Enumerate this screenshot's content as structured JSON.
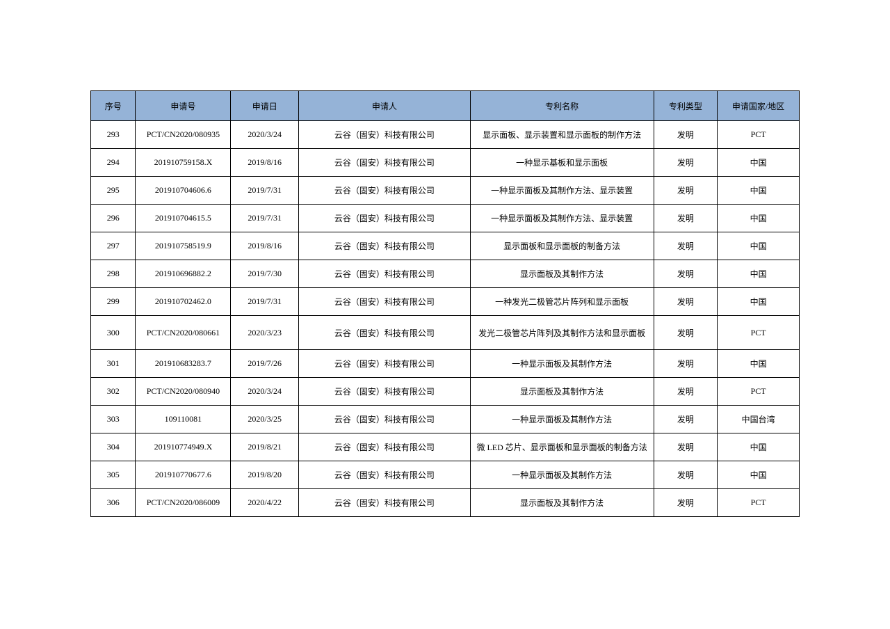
{
  "columns": [
    "序号",
    "申请号",
    "申请日",
    "申请人",
    "专利名称",
    "专利类型",
    "申请国家/地区"
  ],
  "rows": [
    [
      "293",
      "PCT/CN2020/080935",
      "2020/3/24",
      "云谷（固安）科技有限公司",
      "显示面板、显示装置和显示面板的制作方法",
      "发明",
      "PCT"
    ],
    [
      "294",
      "201910759158.X",
      "2019/8/16",
      "云谷（固安）科技有限公司",
      "一种显示基板和显示面板",
      "发明",
      "中国"
    ],
    [
      "295",
      "201910704606.6",
      "2019/7/31",
      "云谷（固安）科技有限公司",
      "一种显示面板及其制作方法、显示装置",
      "发明",
      "中国"
    ],
    [
      "296",
      "201910704615.5",
      "2019/7/31",
      "云谷（固安）科技有限公司",
      "一种显示面板及其制作方法、显示装置",
      "发明",
      "中国"
    ],
    [
      "297",
      "201910758519.9",
      "2019/8/16",
      "云谷（固安）科技有限公司",
      "显示面板和显示面板的制备方法",
      "发明",
      "中国"
    ],
    [
      "298",
      "201910696882.2",
      "2019/7/30",
      "云谷（固安）科技有限公司",
      "显示面板及其制作方法",
      "发明",
      "中国"
    ],
    [
      "299",
      "201910702462.0",
      "2019/7/31",
      "云谷（固安）科技有限公司",
      "一种发光二极管芯片阵列和显示面板",
      "发明",
      "中国"
    ],
    [
      "300",
      "PCT/CN2020/080661",
      "2020/3/23",
      "云谷（固安）科技有限公司",
      "发光二极管芯片阵列及其制作方法和显示面板",
      "发明",
      "PCT"
    ],
    [
      "301",
      "201910683283.7",
      "2019/7/26",
      "云谷（固安）科技有限公司",
      "一种显示面板及其制作方法",
      "发明",
      "中国"
    ],
    [
      "302",
      "PCT/CN2020/080940",
      "2020/3/24",
      "云谷（固安）科技有限公司",
      "显示面板及其制作方法",
      "发明",
      "PCT"
    ],
    [
      "303",
      "109110081",
      "2020/3/25",
      "云谷（固安）科技有限公司",
      "一种显示面板及其制作方法",
      "发明",
      "中国台湾"
    ],
    [
      "304",
      "201910774949.X",
      "2019/8/21",
      "云谷（固安）科技有限公司",
      "微 LED 芯片、显示面板和显示面板的制备方法",
      "发明",
      "中国"
    ],
    [
      "305",
      "201910770677.6",
      "2019/8/20",
      "云谷（固安）科技有限公司",
      "一种显示面板及其制作方法",
      "发明",
      "中国"
    ],
    [
      "306",
      "PCT/CN2020/086009",
      "2020/4/22",
      "云谷（固安）科技有限公司",
      "显示面板及其制作方法",
      "发明",
      "PCT"
    ]
  ],
  "tall_rows": [
    7
  ],
  "header_bg": "#95b3d7",
  "border_color": "#000000",
  "font_size": 12
}
